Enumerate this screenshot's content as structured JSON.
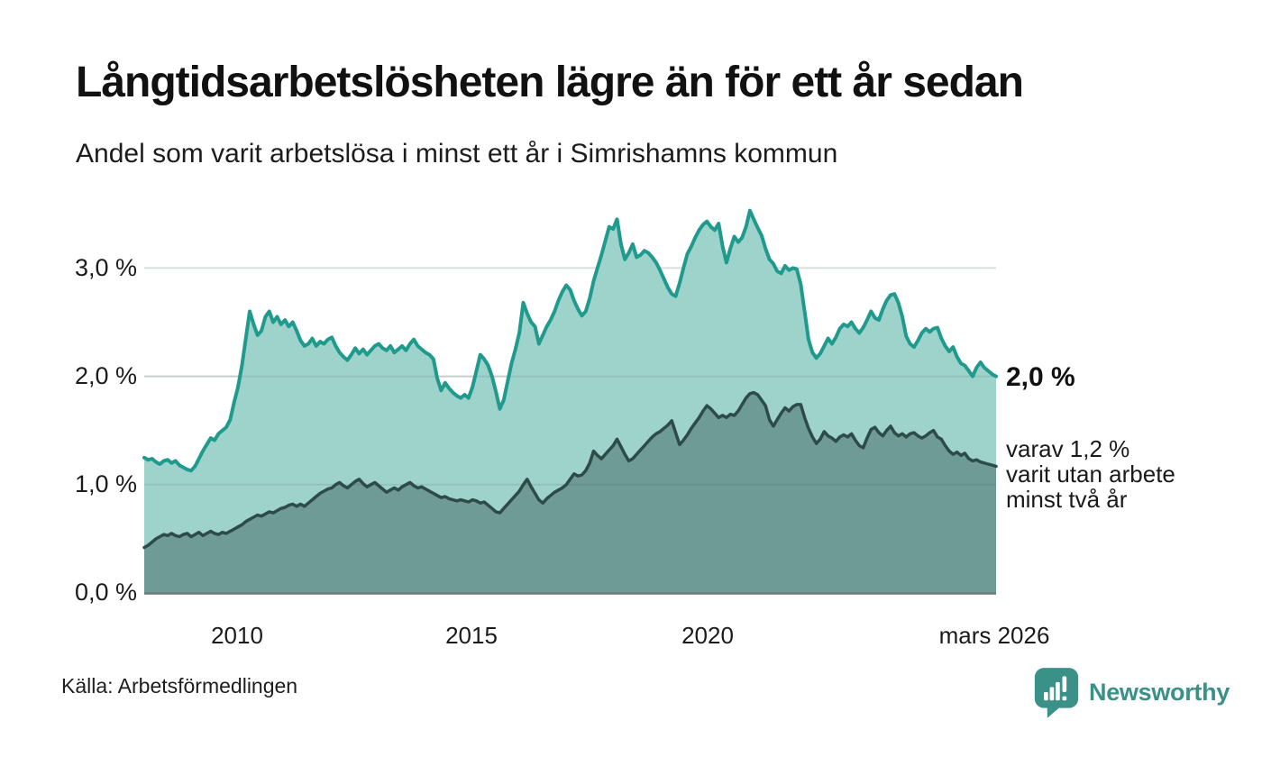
{
  "header": {
    "title": "Långtidsarbetslösheten lägre än för ett år sedan",
    "subtitle": "Andel som varit arbetslösa i minst ett år i Simrishamns kommun"
  },
  "chart_data": {
    "type": "area",
    "title": "Långtidsarbetslösheten lägre än för ett år sedan",
    "subtitle": "Andel som varit arbetslösa i minst ett år i Simrishamns kommun",
    "unit": "%",
    "frequency": "monthly",
    "x_range_estimate": [
      "2008-01",
      "2026-03"
    ],
    "ylim": [
      0,
      3.64
    ],
    "grid": "horizontal",
    "legend_position": "none",
    "y_ticks": [
      {
        "label": "0,0 %",
        "value": 0
      },
      {
        "label": "1,0 %",
        "value": 1
      },
      {
        "label": "2,0 %",
        "value": 2
      },
      {
        "label": "3,0 %",
        "value": 3
      }
    ],
    "x_ticks": [
      {
        "label": "2010",
        "pos": 0.11
      },
      {
        "label": "2015",
        "pos": 0.385
      },
      {
        "label": "2020",
        "pos": 0.66
      },
      {
        "label": "mars 2026",
        "pos": 1.0
      }
    ],
    "series": [
      {
        "name": "arbetslösa i minst ett år",
        "color": "#219a8e",
        "fill": "#9ed3cc",
        "stroke_width": 4,
        "last_value": 2.0,
        "last_value_label": "2,0 %",
        "values": [
          1.25,
          1.23,
          1.24,
          1.21,
          1.19,
          1.22,
          1.23,
          1.2,
          1.22,
          1.18,
          1.16,
          1.14,
          1.13,
          1.17,
          1.24,
          1.31,
          1.37,
          1.43,
          1.41,
          1.47,
          1.5,
          1.53,
          1.6,
          1.76,
          1.9,
          2.1,
          2.35,
          2.6,
          2.48,
          2.38,
          2.42,
          2.55,
          2.6,
          2.5,
          2.55,
          2.48,
          2.52,
          2.46,
          2.5,
          2.42,
          2.33,
          2.28,
          2.3,
          2.35,
          2.28,
          2.32,
          2.3,
          2.34,
          2.36,
          2.28,
          2.22,
          2.18,
          2.15,
          2.2,
          2.26,
          2.21,
          2.25,
          2.2,
          2.24,
          2.28,
          2.3,
          2.26,
          2.24,
          2.28,
          2.22,
          2.25,
          2.28,
          2.24,
          2.3,
          2.34,
          2.28,
          2.25,
          2.22,
          2.2,
          2.16,
          1.98,
          1.87,
          1.94,
          1.89,
          1.85,
          1.82,
          1.8,
          1.83,
          1.8,
          1.9,
          2.05,
          2.2,
          2.16,
          2.1,
          2.0,
          1.86,
          1.7,
          1.78,
          1.95,
          2.12,
          2.25,
          2.4,
          2.68,
          2.58,
          2.5,
          2.46,
          2.3,
          2.38,
          2.46,
          2.52,
          2.6,
          2.7,
          2.78,
          2.84,
          2.8,
          2.7,
          2.62,
          2.56,
          2.6,
          2.72,
          2.88,
          3.0,
          3.12,
          3.25,
          3.38,
          3.36,
          3.45,
          3.22,
          3.08,
          3.14,
          3.22,
          3.1,
          3.12,
          3.16,
          3.14,
          3.1,
          3.05,
          2.98,
          2.9,
          2.82,
          2.76,
          2.74,
          2.86,
          3.0,
          3.13,
          3.2,
          3.28,
          3.35,
          3.4,
          3.43,
          3.38,
          3.35,
          3.41,
          3.2,
          3.05,
          3.18,
          3.29,
          3.24,
          3.28,
          3.38,
          3.53,
          3.45,
          3.37,
          3.3,
          3.18,
          3.08,
          3.04,
          2.97,
          2.95,
          3.02,
          2.98,
          3.0,
          2.99,
          2.85,
          2.6,
          2.34,
          2.22,
          2.17,
          2.21,
          2.28,
          2.35,
          2.3,
          2.36,
          2.44,
          2.48,
          2.46,
          2.5,
          2.44,
          2.4,
          2.45,
          2.52,
          2.6,
          2.54,
          2.52,
          2.62,
          2.7,
          2.75,
          2.76,
          2.68,
          2.55,
          2.37,
          2.3,
          2.27,
          2.33,
          2.4,
          2.44,
          2.41,
          2.44,
          2.45,
          2.35,
          2.28,
          2.23,
          2.27,
          2.18,
          2.12,
          2.1,
          2.05,
          2.0,
          2.08,
          2.13,
          2.08,
          2.05,
          2.02,
          2.0
        ]
      },
      {
        "name": "utan arbete minst två år",
        "color": "#2d4b48",
        "fill": "#6e9b96",
        "stroke_width": 3.5,
        "last_value": 1.2,
        "last_value_label": "1,2 %",
        "values": [
          0.42,
          0.44,
          0.47,
          0.5,
          0.52,
          0.54,
          0.53,
          0.55,
          0.53,
          0.52,
          0.54,
          0.55,
          0.52,
          0.54,
          0.56,
          0.53,
          0.55,
          0.57,
          0.55,
          0.54,
          0.56,
          0.55,
          0.57,
          0.59,
          0.61,
          0.63,
          0.66,
          0.68,
          0.7,
          0.72,
          0.71,
          0.73,
          0.75,
          0.74,
          0.76,
          0.78,
          0.79,
          0.81,
          0.82,
          0.8,
          0.82,
          0.8,
          0.83,
          0.86,
          0.89,
          0.92,
          0.94,
          0.96,
          0.97,
          1.0,
          1.02,
          0.99,
          0.97,
          1.0,
          1.03,
          1.05,
          1.01,
          0.98,
          1.0,
          1.02,
          0.99,
          0.96,
          0.93,
          0.95,
          0.97,
          0.95,
          0.98,
          1.0,
          1.02,
          0.99,
          0.97,
          0.98,
          0.96,
          0.94,
          0.92,
          0.9,
          0.88,
          0.89,
          0.87,
          0.86,
          0.85,
          0.86,
          0.85,
          0.84,
          0.86,
          0.85,
          0.83,
          0.84,
          0.81,
          0.78,
          0.75,
          0.74,
          0.78,
          0.82,
          0.86,
          0.9,
          0.94,
          1.0,
          1.05,
          0.98,
          0.92,
          0.86,
          0.83,
          0.87,
          0.9,
          0.93,
          0.95,
          0.97,
          1.0,
          1.05,
          1.1,
          1.08,
          1.09,
          1.13,
          1.2,
          1.31,
          1.27,
          1.24,
          1.28,
          1.32,
          1.36,
          1.42,
          1.35,
          1.28,
          1.22,
          1.24,
          1.28,
          1.32,
          1.36,
          1.4,
          1.44,
          1.47,
          1.49,
          1.52,
          1.55,
          1.59,
          1.48,
          1.37,
          1.41,
          1.46,
          1.52,
          1.57,
          1.62,
          1.68,
          1.73,
          1.7,
          1.66,
          1.62,
          1.64,
          1.62,
          1.65,
          1.64,
          1.68,
          1.74,
          1.8,
          1.84,
          1.85,
          1.83,
          1.78,
          1.73,
          1.6,
          1.54,
          1.6,
          1.66,
          1.71,
          1.68,
          1.72,
          1.74,
          1.74,
          1.62,
          1.52,
          1.44,
          1.38,
          1.42,
          1.49,
          1.45,
          1.43,
          1.4,
          1.44,
          1.46,
          1.44,
          1.47,
          1.41,
          1.36,
          1.34,
          1.43,
          1.51,
          1.53,
          1.48,
          1.45,
          1.5,
          1.54,
          1.48,
          1.45,
          1.47,
          1.44,
          1.47,
          1.48,
          1.45,
          1.43,
          1.45,
          1.48,
          1.5,
          1.44,
          1.42,
          1.36,
          1.31,
          1.28,
          1.3,
          1.27,
          1.29,
          1.24,
          1.22,
          1.23,
          1.21,
          1.2,
          1.19,
          1.18,
          1.17
        ]
      }
    ]
  },
  "annotations": {
    "last_value_big": "2,0 %",
    "secondary": "varav 1,2 %\nvarit utan arbete\nminst två år"
  },
  "footer": {
    "source": "Källa: Arbetsförmedlingen",
    "brand": "Newsworthy"
  },
  "colors": {
    "accent_teal": "#219a8e",
    "fill_light": "#9ed3cc",
    "line_dark": "#2d4b48",
    "fill_dark": "#6e9b96",
    "gridline": "#dadedd",
    "axis": "#6e7773",
    "brand_teal": "#3a9188"
  }
}
